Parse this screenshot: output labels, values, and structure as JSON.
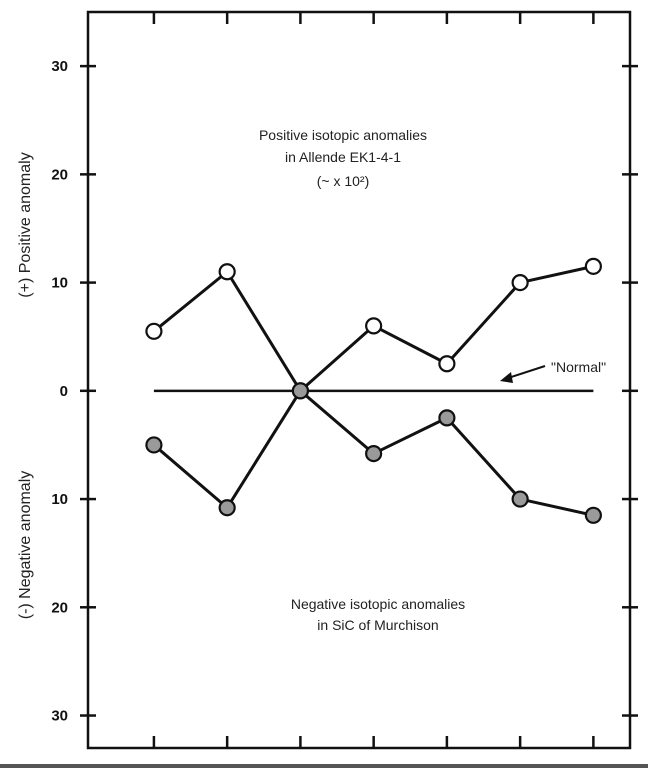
{
  "chart_data": {
    "type": "line",
    "title": "",
    "xlabel": "",
    "ylabel_positive": "(+) Positive anomaly",
    "ylabel_negative": "(-) Negative anomaly",
    "y_tick_labels": [
      "30",
      "20",
      "10",
      "0",
      "10",
      "20",
      "30"
    ],
    "y_tick_values": [
      30,
      20,
      10,
      0,
      -10,
      -20,
      -30
    ],
    "ylim": [
      -33,
      35
    ],
    "x_categories": [
      1,
      2,
      3,
      4,
      5,
      6,
      7
    ],
    "xlim": [
      0.1,
      7.5
    ],
    "grid": false,
    "series": [
      {
        "name": "Positive isotopic anomalies in Allende EK1-4-1",
        "marker": "open-circle",
        "x": [
          1,
          2,
          3,
          4,
          5,
          6,
          7
        ],
        "values": [
          5.5,
          11,
          0,
          6,
          2.5,
          10,
          11.5
        ]
      },
      {
        "name": "Negative isotopic anomalies in SiC of Murchison",
        "marker": "filled-circle",
        "x": [
          1,
          2,
          3,
          4,
          5,
          6,
          7
        ],
        "values": [
          -5,
          -10.8,
          0,
          -5.8,
          -2.5,
          -10,
          -11.5
        ]
      }
    ],
    "reference_line": {
      "y": 0,
      "x_from": 1,
      "x_to": 7,
      "label": "\"Normal\""
    },
    "annotations": {
      "positive": [
        "Positive isotopic anomalies",
        "in Allende EK1-4-1",
        "(~ x 10²)"
      ],
      "negative": [
        "Negative isotopic anomalies",
        "in SiC of Murchison"
      ]
    },
    "colors": {
      "axis": "#111111",
      "line": "#111111",
      "filled_marker": "#9a9a9a",
      "open_marker": "#ffffff"
    }
  }
}
